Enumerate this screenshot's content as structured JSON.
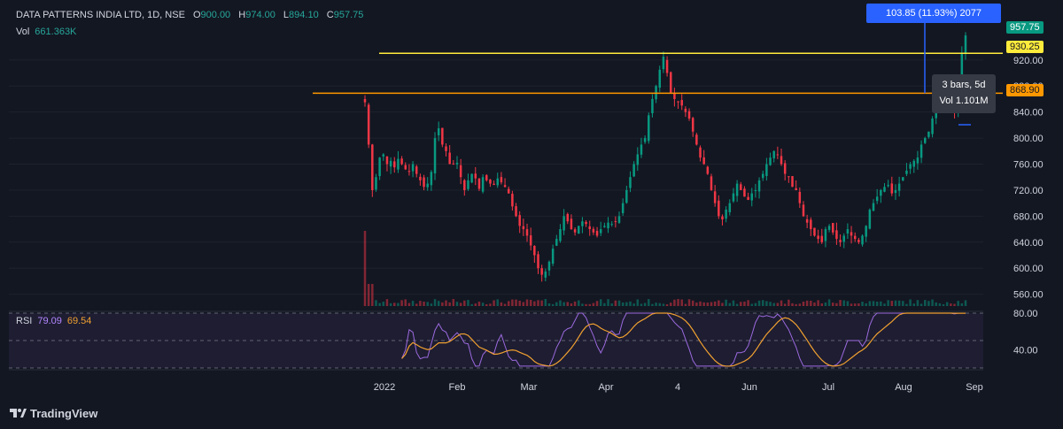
{
  "header": {
    "symbol": "DATA PATTERNS INDIA LTD, 1D, NSE",
    "open_label": "O",
    "open": "900.00",
    "high_label": "H",
    "high": "974.00",
    "low_label": "L",
    "low": "894.10",
    "close_label": "C",
    "close": "957.75"
  },
  "volume_indicator": {
    "label": "Vol",
    "value": "661.363K"
  },
  "rsi_indicator": {
    "label": "RSI",
    "value": "79.09",
    "ma_value": "69.54"
  },
  "labels": {
    "last_price": "957.75",
    "yellow_line": "930.25",
    "orange_line": "868.90",
    "measure": "103.85 (11.93%) 2077",
    "tooltip_line1": "3 bars, 5d",
    "tooltip_line2": "Vol 1.101M"
  },
  "footer": {
    "brand": "TradingView"
  },
  "colors": {
    "up": "#089981",
    "down": "#f23645",
    "yellow": "#ffeb3b",
    "orange": "#ff9800",
    "rsi": "#9c6ade",
    "rsi_ma": "#f0a030",
    "measure": "#2962ff"
  },
  "chart_data": {
    "type": "candlestick",
    "symbol": "DATA PATTERNS INDIA LTD",
    "interval": "1D",
    "exchange": "NSE",
    "price_axis": {
      "ticks": [
        560,
        600,
        640,
        680,
        720,
        760,
        800,
        840,
        880,
        920
      ],
      "range": [
        550,
        985
      ]
    },
    "time_axis_labels": [
      "2022",
      "Feb",
      "Mar",
      "Apr",
      "4",
      "Jun",
      "Jul",
      "Aug",
      "Sep"
    ],
    "rsi_axis": {
      "ticks": [
        80,
        40
      ],
      "bands": [
        70,
        30
      ]
    },
    "horizontal_lines": [
      {
        "color": "yellow",
        "value": 930.25
      },
      {
        "color": "orange",
        "value": 868.9
      }
    ],
    "closes": [
      855,
      790,
      720,
      740,
      770,
      775,
      760,
      765,
      755,
      768,
      760,
      752,
      748,
      760,
      745,
      735,
      725,
      730,
      748,
      800,
      815,
      790,
      780,
      760,
      760,
      762,
      740,
      720,
      735,
      745,
      738,
      722,
      740,
      735,
      730,
      728,
      738,
      732,
      725,
      715,
      695,
      680,
      665,
      660,
      650,
      635,
      620,
      600,
      590,
      595,
      610,
      630,
      645,
      660,
      680,
      672,
      660,
      655,
      665,
      672,
      668,
      660,
      655,
      650,
      660,
      665,
      670,
      668,
      672,
      680,
      700,
      720,
      740,
      760,
      775,
      790,
      800,
      835,
      860,
      880,
      905,
      925,
      900,
      870,
      860,
      855,
      850,
      840,
      830,
      810,
      790,
      770,
      760,
      745,
      720,
      700,
      680,
      675,
      690,
      700,
      715,
      730,
      720,
      710,
      705,
      715,
      720,
      735,
      745,
      760,
      770,
      780,
      775,
      760,
      745,
      740,
      725,
      720,
      700,
      680,
      670,
      660,
      650,
      645,
      640,
      660,
      665,
      655,
      645,
      640,
      650,
      660,
      650,
      645,
      640,
      650,
      665,
      690,
      700,
      710,
      720,
      725,
      728,
      715,
      720,
      730,
      740,
      750,
      760,
      765,
      770,
      790,
      800,
      810,
      830,
      845,
      850,
      860,
      865,
      858,
      840,
      870,
      930,
      957.75
    ],
    "volume_spike_note": "volume pane shown as bars under price"
  }
}
